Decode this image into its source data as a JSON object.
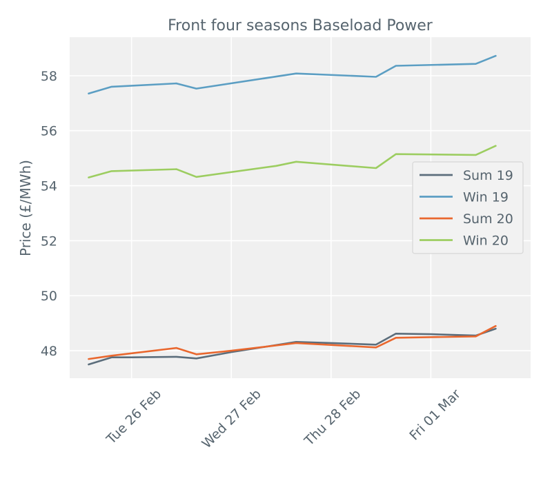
{
  "chart_data": {
    "type": "line",
    "title": "Front four seasons Baseload Power",
    "xlabel": "",
    "ylabel": "Price (£/MWh)",
    "x_ticks": [
      "Tue 26 Feb",
      "Wed 27 Feb",
      "Thu 28 Feb",
      "Fri 01 Mar"
    ],
    "y_ticks": [
      48,
      50,
      52,
      54,
      56,
      58
    ],
    "ylim": [
      47,
      59.4
    ],
    "x_tick_positions": [
      1.0,
      2.0,
      3.0,
      4.0
    ],
    "xlim": [
      0.38,
      5.0
    ],
    "grid": true,
    "legend_position": "right",
    "series": [
      {
        "name": "Sum 19",
        "color": "#5b6d7b",
        "x": [
          0.57,
          0.8,
          1.0,
          1.45,
          1.65,
          2.0,
          2.65,
          3.0,
          3.45,
          3.65,
          4.0,
          4.45,
          4.65
        ],
        "y": [
          47.5,
          47.76,
          47.76,
          47.78,
          47.72,
          47.95,
          48.32,
          48.28,
          48.22,
          48.62,
          48.6,
          48.55,
          48.8
        ]
      },
      {
        "name": "Win 19",
        "color": "#5b9ec3",
        "x": [
          0.57,
          0.8,
          1.45,
          1.65,
          2.65,
          3.45,
          3.65,
          4.45,
          4.65
        ],
        "y": [
          57.35,
          57.6,
          57.72,
          57.53,
          58.08,
          57.96,
          58.36,
          58.43,
          58.72
        ]
      },
      {
        "name": "Sum 20",
        "color": "#e9672e",
        "x": [
          0.57,
          0.8,
          1.45,
          1.65,
          2.0,
          2.65,
          3.45,
          3.65,
          4.45,
          4.65
        ],
        "y": [
          47.7,
          47.82,
          48.1,
          47.87,
          48.0,
          48.28,
          48.12,
          48.47,
          48.52,
          48.9
        ]
      },
      {
        "name": "Win 20",
        "color": "#9ccd60",
        "x": [
          0.57,
          0.8,
          1.45,
          1.65,
          2.45,
          2.65,
          3.45,
          3.65,
          4.45,
          4.65
        ],
        "y": [
          54.3,
          54.53,
          54.6,
          54.32,
          54.72,
          54.87,
          54.64,
          55.15,
          55.12,
          55.45
        ]
      }
    ]
  }
}
